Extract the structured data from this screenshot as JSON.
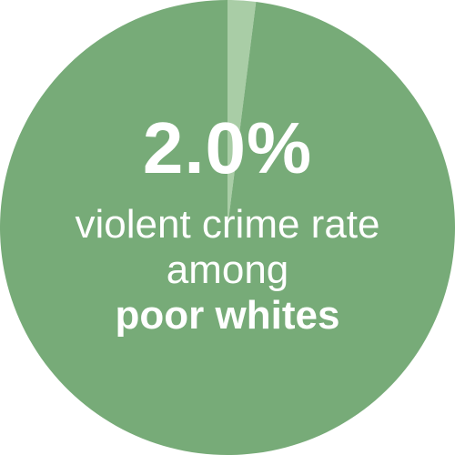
{
  "chart_data": {
    "type": "pie",
    "slices": [
      {
        "label": "violent crime rate among poor whites",
        "value": 2.0,
        "color": "#a9cda6"
      },
      {
        "label": "",
        "value": 98.0,
        "color": "#77ab78"
      }
    ],
    "value_label": "2.0%",
    "caption": {
      "line1": "violent crime rate",
      "line2": "among",
      "line3": "poor whites"
    },
    "legend": "none"
  }
}
